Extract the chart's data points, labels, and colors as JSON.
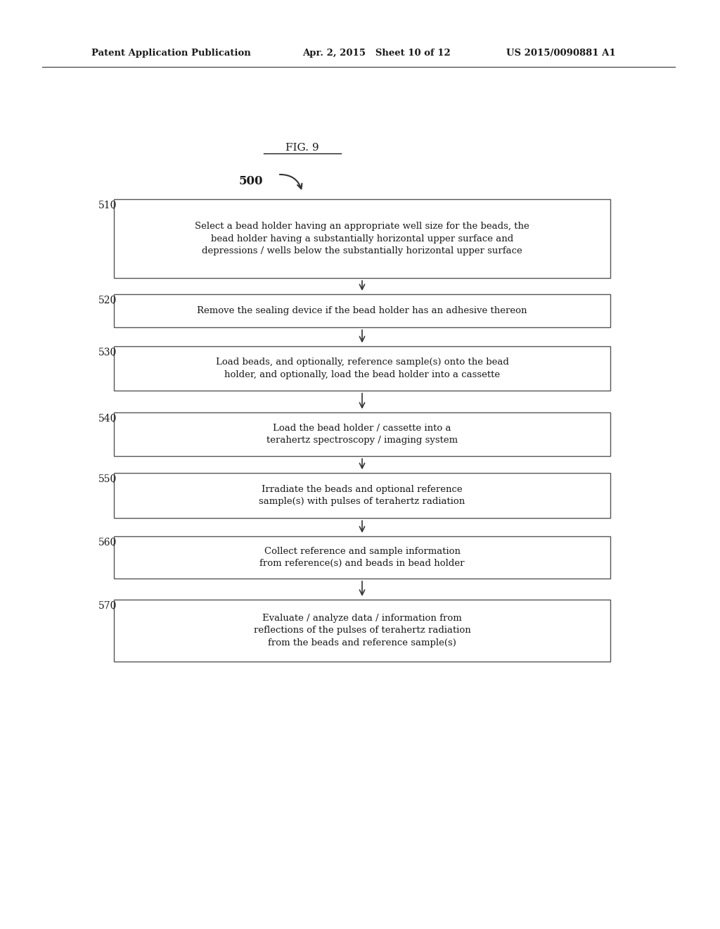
{
  "bg_color": "#ffffff",
  "header_left": "Patent Application Publication",
  "header_mid": "Apr. 2, 2015   Sheet 10 of 12",
  "header_right": "US 2015/0090881 A1",
  "fig_title": "FIG. 9",
  "flow_label": "500",
  "steps": [
    {
      "id": "510",
      "label": "Select a bead holder having an appropriate well size for the beads, the\nbead holder having a substantially horizontal upper surface and\ndepressions / wells below the substantially horizontal upper surface"
    },
    {
      "id": "520",
      "label": "Remove the sealing device if the bead holder has an adhesive thereon"
    },
    {
      "id": "530",
      "label": "Load beads, and optionally, reference sample(s) onto the bead\nholder, and optionally, load the bead holder into a cassette"
    },
    {
      "id": "540",
      "label": "Load the bead holder / cassette into a\nterahertz spectroscopy / imaging system"
    },
    {
      "id": "550",
      "label": "Irradiate the beads and optional reference\nsample(s) with pulses of terahertz radiation"
    },
    {
      "id": "560",
      "label": "Collect reference and sample information\nfrom reference(s) and beads in bead holder"
    },
    {
      "id": "570",
      "label": "Evaluate / analyze data / information from\nreflections of the pulses of terahertz radiation\nfrom the beads and reference sample(s)"
    }
  ]
}
